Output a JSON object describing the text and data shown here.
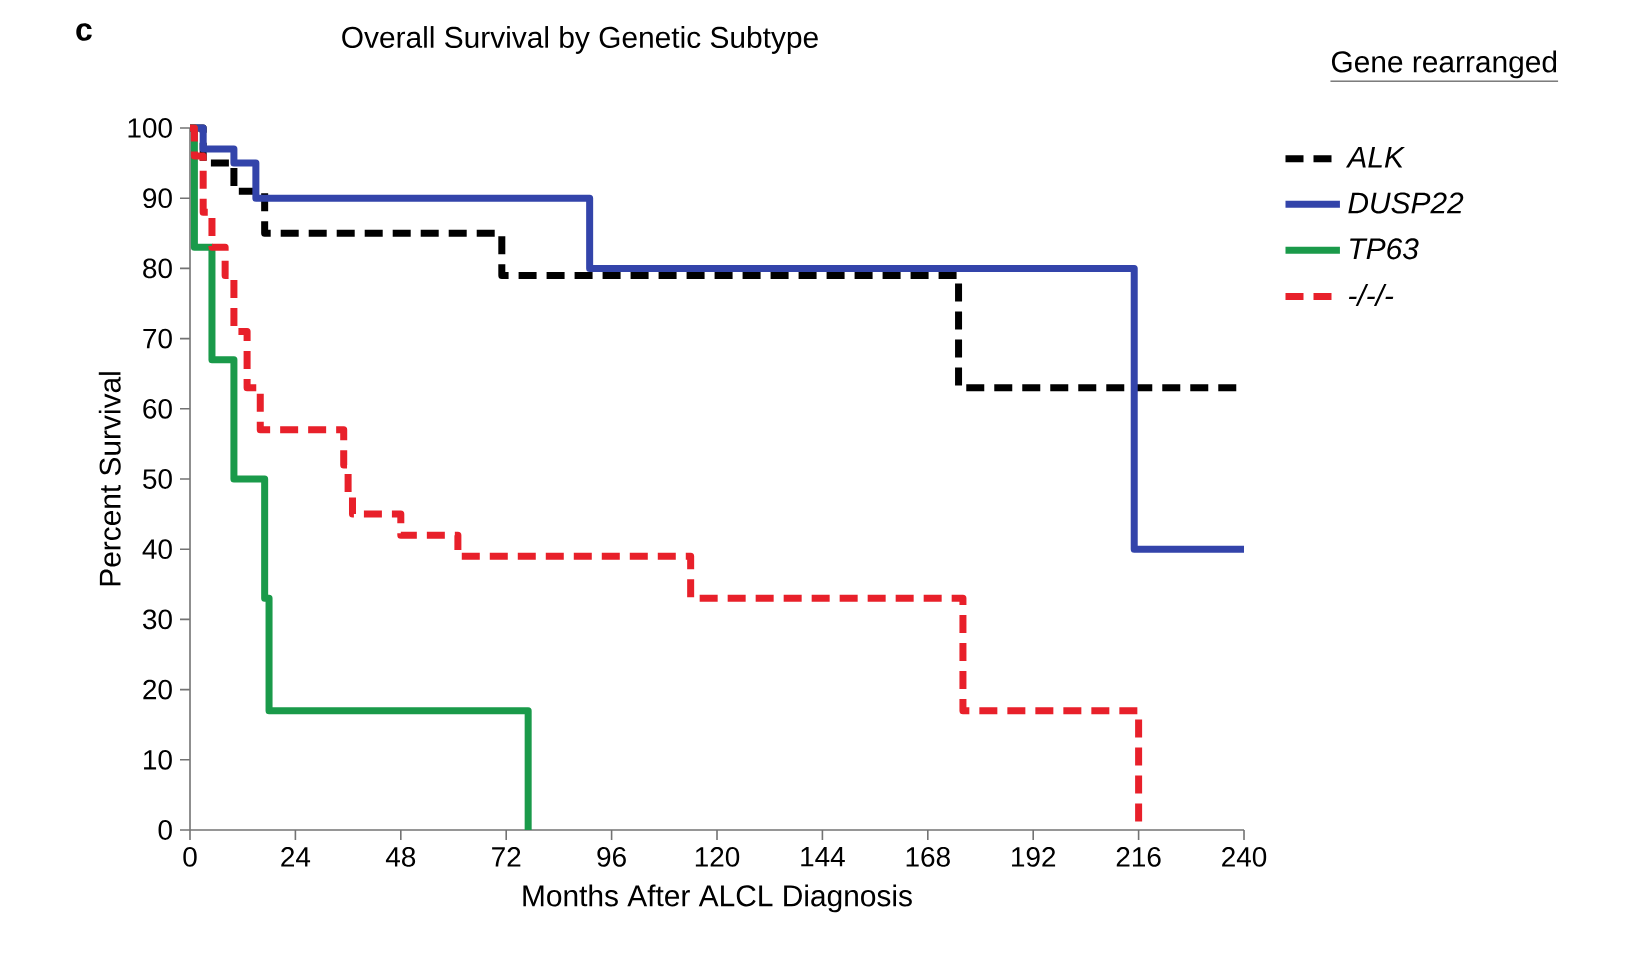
{
  "chart_data": {
    "type": "step",
    "title": "Overall Survival by Genetic Subtype",
    "xlabel": "Months After ALCL Diagnosis",
    "ylabel": "Percent Survival",
    "legend_title": "Gene rearranged",
    "annotations": [
      "c"
    ],
    "xlim": [
      0,
      240
    ],
    "xticks": [
      0,
      24,
      48,
      72,
      96,
      120,
      144,
      168,
      192,
      216,
      240
    ],
    "ylim": [
      0,
      100
    ],
    "yticks": [
      0,
      10,
      20,
      30,
      40,
      50,
      60,
      70,
      80,
      90,
      100
    ],
    "grid": false,
    "legend": "top right",
    "marker": "none",
    "series": [
      {
        "name": "ALK",
        "color": "#000000",
        "line_style": "dashed",
        "x": [
          0,
          3,
          10,
          17,
          71,
          175,
          240
        ],
        "values": [
          100,
          95,
          91,
          85,
          79,
          63,
          63
        ]
      },
      {
        "name": "DUSP22",
        "color": "#3344aa",
        "line_style": "solid",
        "x": [
          0,
          3,
          10,
          15,
          91,
          215,
          240
        ],
        "values": [
          100,
          97,
          95,
          90,
          80,
          40,
          40
        ]
      },
      {
        "name": "TP63",
        "color": "#1a9a4a",
        "line_style": "solid",
        "x": [
          0,
          1,
          5,
          10,
          17,
          18,
          77
        ],
        "values": [
          100,
          83,
          67,
          50,
          33,
          17,
          0
        ]
      },
      {
        "name": "-/-/-",
        "color": "#e8202a",
        "line_style": "dashed",
        "x": [
          0,
          1,
          3,
          5,
          8,
          10,
          13,
          16,
          35,
          36,
          37,
          48,
          61,
          114,
          176,
          216
        ],
        "values": [
          100,
          96,
          88,
          83,
          79,
          71,
          63,
          57,
          52,
          48,
          45,
          42,
          39,
          33,
          17,
          0
        ]
      }
    ]
  }
}
